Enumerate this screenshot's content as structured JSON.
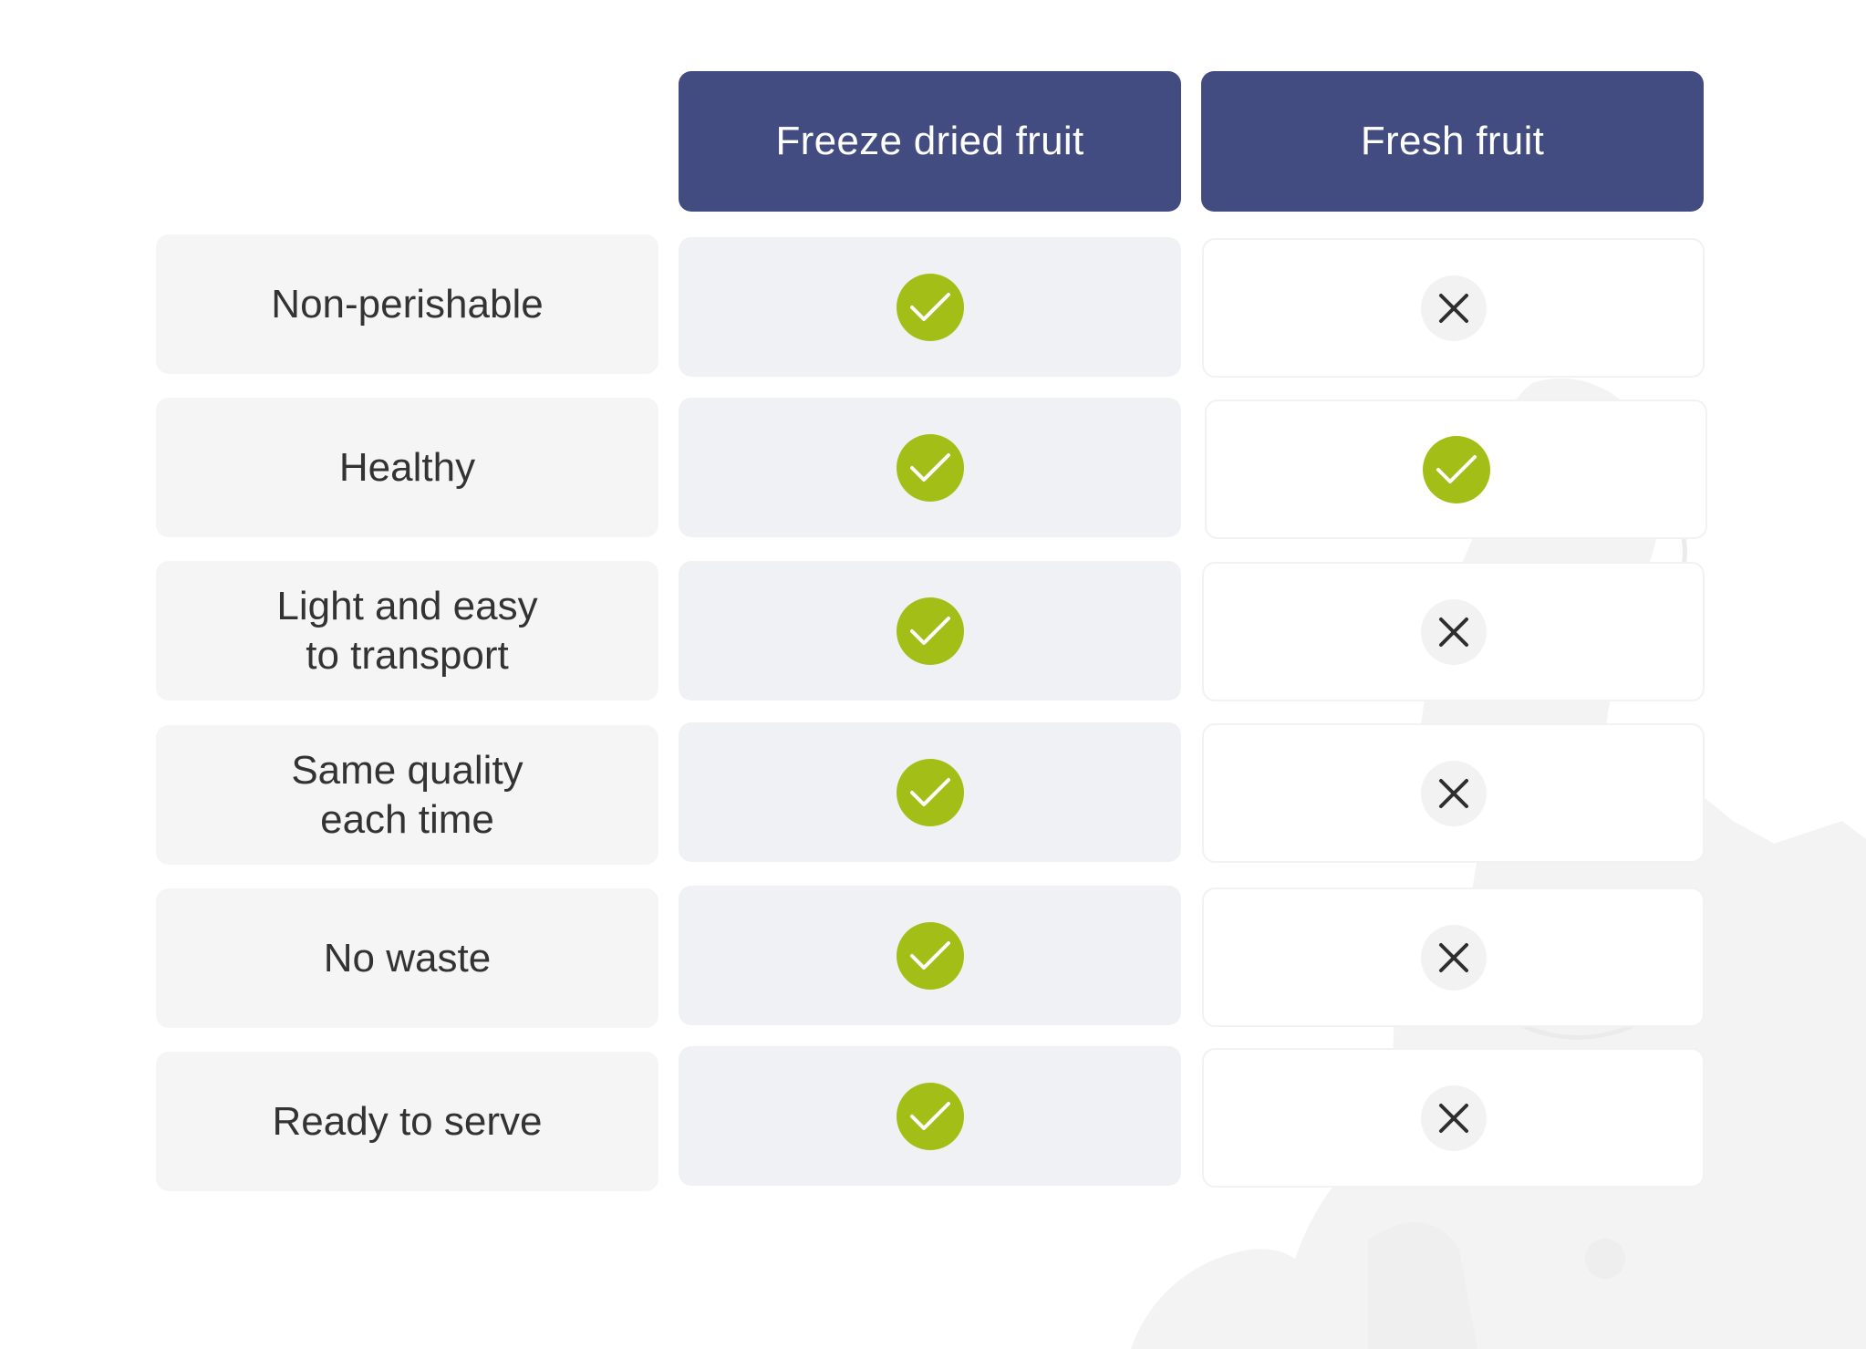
{
  "columns": {
    "freeze": "Freeze dried fruit",
    "fresh": "Fresh fruit"
  },
  "colors": {
    "header_bg": "#434c80",
    "check_green": "#a3be17",
    "cross_bg": "#f2f2f2",
    "feature_bg": "#f5f5f5",
    "freeze_bg": "#f0f1f4"
  },
  "rows": [
    {
      "feature": "Non-perishable",
      "freeze": "check-icon",
      "fresh": "cross-icon"
    },
    {
      "feature": "Healthy",
      "freeze": "check-icon",
      "fresh": "check-icon"
    },
    {
      "feature": "Light and easy\nto transport",
      "freeze": "check-icon",
      "fresh": "cross-icon"
    },
    {
      "feature": "Same quality\neach time",
      "freeze": "check-icon",
      "fresh": "cross-icon"
    },
    {
      "feature": "No waste",
      "freeze": "check-icon",
      "fresh": "cross-icon"
    },
    {
      "feature": "Ready to serve",
      "freeze": "check-icon",
      "fresh": "cross-icon"
    }
  ]
}
